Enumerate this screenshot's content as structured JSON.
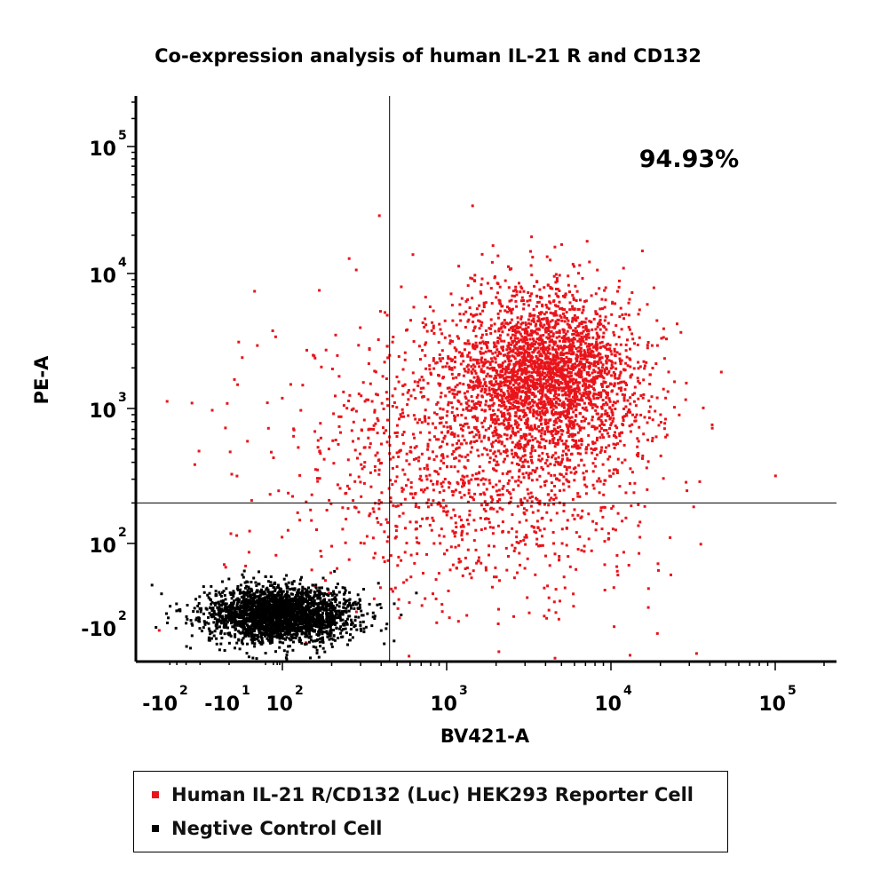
{
  "chart_data": {
    "type": "scatter",
    "title": "Co-expression analysis of human IL-21 R and CD132",
    "xlabel": "BV421-A",
    "ylabel": "PE-A",
    "gate_label": "94.93%",
    "x_ticks": [
      {
        "value": -100,
        "base": "-10",
        "exp": "2"
      },
      {
        "value": -10,
        "base": "-10",
        "exp": "1"
      },
      {
        "value": 100,
        "base": "10",
        "exp": "2"
      },
      {
        "value": 1000,
        "base": "10",
        "exp": "3"
      },
      {
        "value": 10000,
        "base": "10",
        "exp": "4"
      },
      {
        "value": 100000,
        "base": "10",
        "exp": "5"
      }
    ],
    "y_ticks": [
      {
        "value": -100,
        "base": "-10",
        "exp": "2"
      },
      {
        "value": 100,
        "base": "10",
        "exp": "2"
      },
      {
        "value": 1000,
        "base": "10",
        "exp": "3"
      },
      {
        "value": 10000,
        "base": "10",
        "exp": "4"
      },
      {
        "value": 100000,
        "base": "10",
        "exp": "5"
      }
    ],
    "quadrant_gate": {
      "x": 450,
      "y": 200
    },
    "series": [
      {
        "name": "Human IL-21 R/CD132 (Luc) HEK293 Reporter Cell",
        "color": "#e8141b",
        "clusters": [
          {
            "x_center": 4000,
            "y_center": 1800,
            "x_spread_decades": 0.28,
            "y_spread_decades": 0.32,
            "n": 2600
          },
          {
            "x_center": 1500,
            "y_center": 400,
            "x_spread_decades": 0.55,
            "y_spread_decades": 0.55,
            "n": 1500
          }
        ]
      },
      {
        "name": "Negtive Control Cell",
        "color": "#000000",
        "clusters": [
          {
            "x_center": 60,
            "y_center": -25,
            "x_spread_decades": 0.22,
            "y_spread_decades": 0.1,
            "n": 2600
          }
        ]
      }
    ]
  }
}
